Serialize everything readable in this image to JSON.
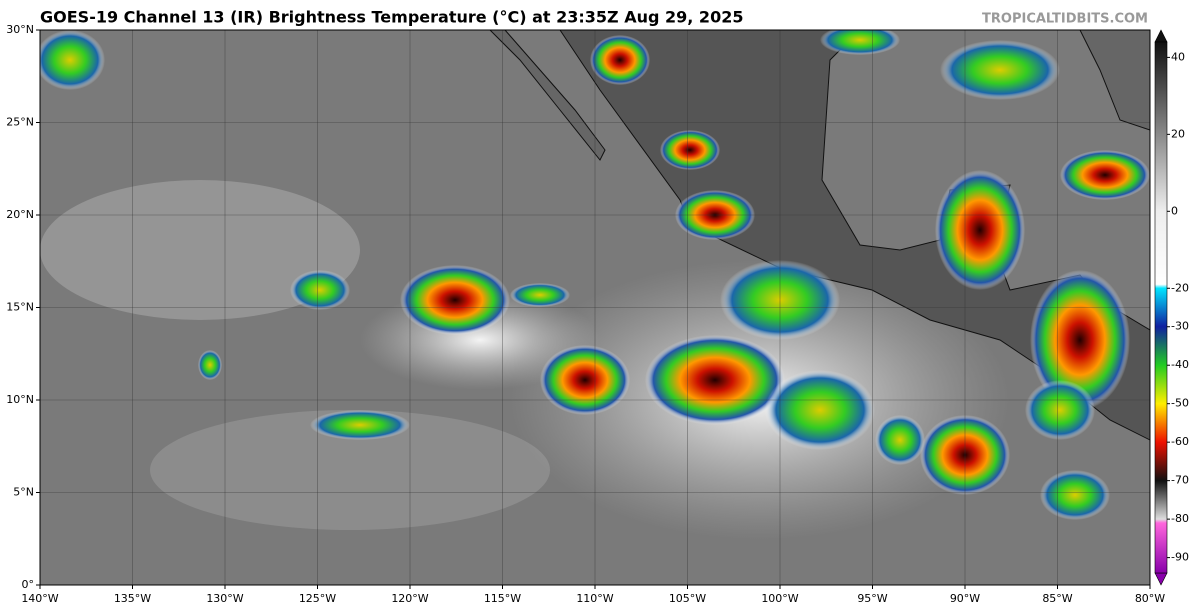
{
  "map": {
    "title": "GOES-19 Channel 13 (IR) Brightness Temperature (°C) at 23:35Z Aug 29, 2025",
    "credit": "TROPICALTIDBITS.COM",
    "xlim": [
      -140,
      -80
    ],
    "ylim": [
      0,
      30
    ],
    "lon_ticks": [
      {
        "value": -140,
        "label": "140°W"
      },
      {
        "value": -135,
        "label": "135°W"
      },
      {
        "value": -130,
        "label": "130°W"
      },
      {
        "value": -125,
        "label": "125°W"
      },
      {
        "value": -120,
        "label": "120°W"
      },
      {
        "value": -115,
        "label": "115°W"
      },
      {
        "value": -110,
        "label": "110°W"
      },
      {
        "value": -105,
        "label": "105°W"
      },
      {
        "value": -100,
        "label": "100°W"
      },
      {
        "value": -95,
        "label": "95°W"
      },
      {
        "value": -90,
        "label": "90°W"
      },
      {
        "value": -85,
        "label": "85°W"
      },
      {
        "value": -80,
        "label": "80°W"
      }
    ],
    "lat_ticks": [
      {
        "value": 0,
        "label": "0°"
      },
      {
        "value": 5,
        "label": "5°N"
      },
      {
        "value": 10,
        "label": "10°N"
      },
      {
        "value": 15,
        "label": "15°N"
      },
      {
        "value": 20,
        "label": "20°N"
      },
      {
        "value": 25,
        "label": "25°N"
      },
      {
        "value": 30,
        "label": "30°N"
      }
    ],
    "colorbar": {
      "lim": [
        -94,
        44
      ],
      "ticks": [
        40,
        20,
        0,
        -20,
        -30,
        -40,
        -50,
        -60,
        -70,
        -80,
        -90
      ],
      "stops": [
        {
          "value": 44,
          "color": "#111111"
        },
        {
          "value": 0,
          "color": "#eeeeee"
        },
        {
          "value": -19,
          "color": "#ffffff"
        },
        {
          "value": -20,
          "color": "#00e5ff"
        },
        {
          "value": -30,
          "color": "#1020a0"
        },
        {
          "value": -40,
          "color": "#22cc22"
        },
        {
          "value": -50,
          "color": "#ffee00"
        },
        {
          "value": -60,
          "color": "#ee1100"
        },
        {
          "value": -70,
          "color": "#111111"
        },
        {
          "value": -80,
          "color": "#dddddd"
        },
        {
          "value": -81,
          "color": "#ff66dd"
        },
        {
          "value": -94,
          "color": "#8800aa"
        }
      ]
    }
  }
}
